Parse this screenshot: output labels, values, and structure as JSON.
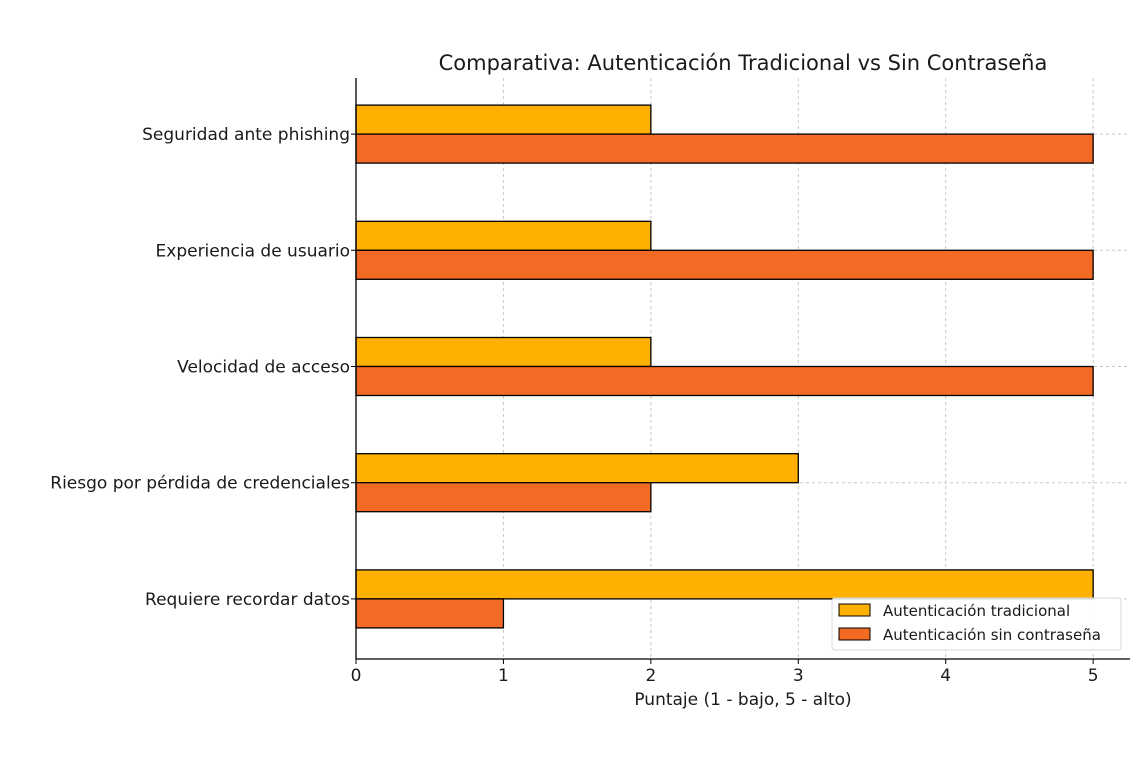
{
  "chart_data": {
    "type": "bar",
    "orientation": "horizontal",
    "title": "Comparativa: Autenticación Tradicional vs Sin Contraseña",
    "xlabel": "Puntaje (1 - bajo, 5 - alto)",
    "ylabel": "",
    "xlim": [
      0,
      5.25
    ],
    "xticks": [
      "0",
      "1",
      "2",
      "3",
      "4",
      "5"
    ],
    "grid": true,
    "legend_position": "lower-right",
    "categories": [
      "Seguridad ante phishing",
      "Experiencia de usuario",
      "Velocidad de acceso",
      "Riesgo por pérdida de credenciales",
      "Requiere recordar datos"
    ],
    "series": [
      {
        "name": "Autenticación tradicional",
        "color": "#FFB000",
        "values": [
          2,
          2,
          2,
          3,
          5
        ]
      },
      {
        "name": "Autenticación sin contraseña",
        "color": "#F26A24",
        "values": [
          5,
          5,
          5,
          2,
          1
        ]
      }
    ]
  }
}
